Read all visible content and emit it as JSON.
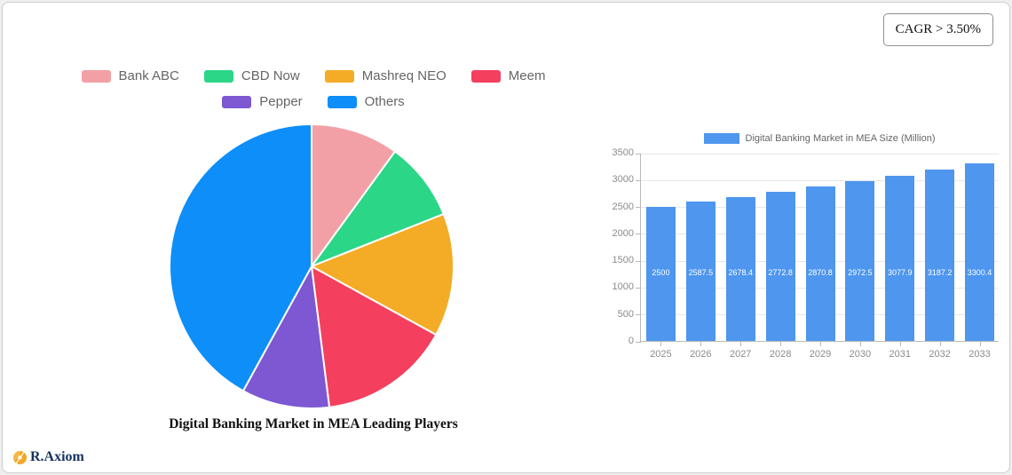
{
  "cagr_label": "CAGR > 3.50%",
  "brand": {
    "name": "R.Axiom"
  },
  "colors": {
    "accent_orange": "#f5a623",
    "bar_blue": "#4e96ee",
    "axis_gray": "#b9b9b9",
    "text_gray": "#666666"
  },
  "chart_data": [
    {
      "type": "pie",
      "title": "Digital Banking Market in MEA Leading Players",
      "labels": [
        "Bank ABC",
        "CBD Now",
        "Mashreq NEO",
        "Meem",
        "Pepper",
        "Others"
      ],
      "values": [
        10,
        9,
        14,
        15,
        10,
        42
      ],
      "colors": [
        "#f2a0a6",
        "#2bd687",
        "#f4ab25",
        "#f43f5e",
        "#7d58d2",
        "#0d8ef8"
      ],
      "start_angle_deg": 0,
      "direction": "clockwise",
      "legend_rows": [
        [
          0,
          1,
          2,
          3
        ],
        [
          4,
          5
        ]
      ],
      "legend_position": "top"
    },
    {
      "type": "bar",
      "legend": "Digital Banking Market in MEA Size (Million)",
      "categories": [
        "2025",
        "2026",
        "2027",
        "2028",
        "2029",
        "2030",
        "2031",
        "2032",
        "2033"
      ],
      "values": [
        2500,
        2587.5,
        2678.4,
        2772.8,
        2870.8,
        2972.5,
        3077.9,
        3187.2,
        3300.4
      ],
      "value_labels": [
        "2500",
        "2587.5",
        "2678.4",
        "2772.8",
        "2870.8",
        "2972.5",
        "3077.9",
        "3187.2",
        "3300.4"
      ],
      "bar_color": "#4e96ee",
      "ylim": [
        0,
        3500
      ],
      "ytick_step": 500,
      "grid": true,
      "legend_position": "top"
    }
  ]
}
